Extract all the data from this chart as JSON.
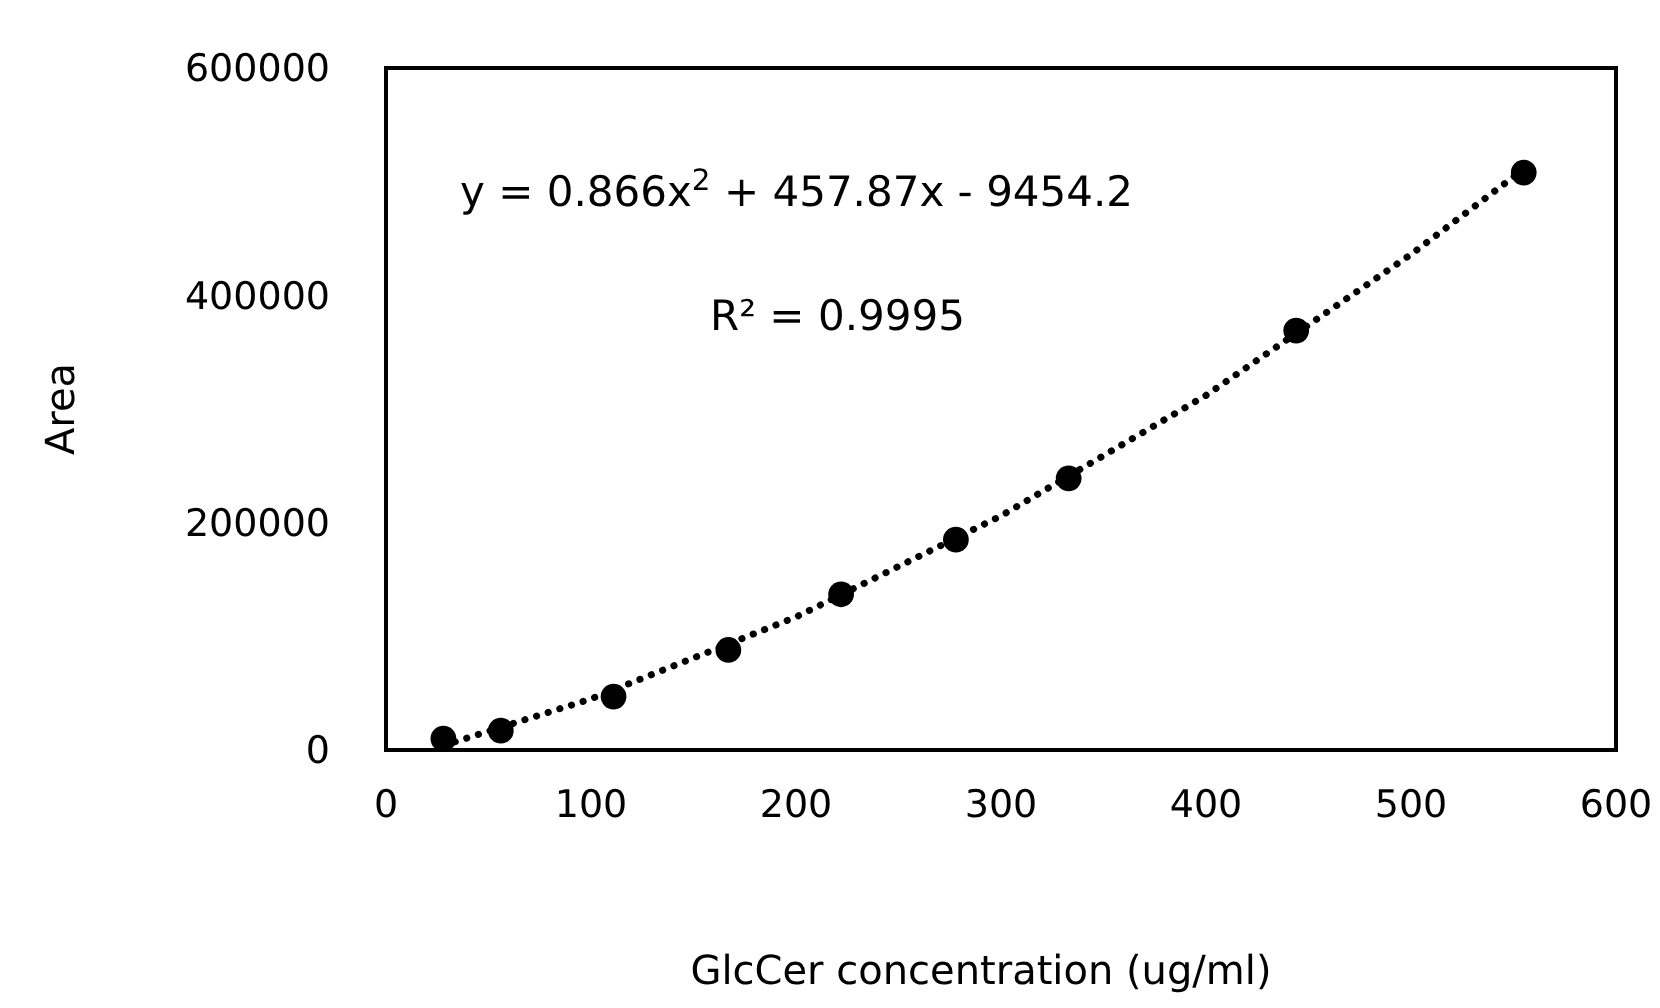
{
  "chart_data": {
    "type": "scatter",
    "xlabel": "GlcCer concentration (ug/ml)",
    "ylabel": "Area",
    "xlim": [
      0,
      600
    ],
    "xticks": [
      0,
      100,
      200,
      300,
      400,
      500,
      600
    ],
    "ylim": [
      0,
      600000
    ],
    "yticks": [
      0,
      200000,
      400000,
      600000
    ],
    "grid": false,
    "series": [
      {
        "color": "#000000",
        "marker": "circle",
        "x": [
          28,
          56,
          111,
          167,
          222,
          278,
          333,
          444,
          555
        ],
        "values": [
          10000,
          17000,
          47000,
          88000,
          137000,
          185000,
          239000,
          369000,
          508000
        ]
      },
      {
        "type": "line",
        "color": "#000000",
        "marker": "none",
        "line_style": "dotted",
        "x": [
          28,
          100,
          200,
          300,
          400,
          500,
          555
        ],
        "values": [
          4000,
          45000,
          117000,
          206000,
          312000,
          436000,
          511000
        ]
      }
    ],
    "annotations": [
      "y = 0.866x$^{2}$ + 457.87x - 9454.2",
      "R² = 0.9995"
    ]
  }
}
